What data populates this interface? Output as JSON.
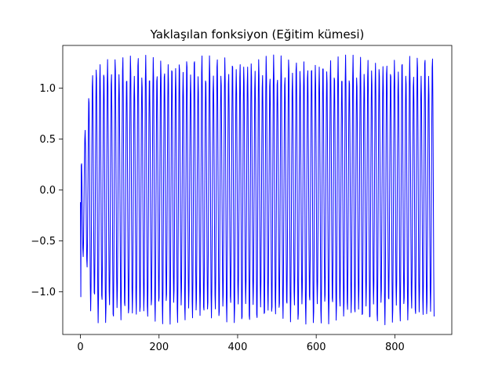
{
  "chart_data": {
    "type": "line",
    "title": "Yaklaşılan fonksiyon (Eğitim kümesi)",
    "xlabel": "",
    "ylabel": "",
    "xlim": [
      -45,
      945
    ],
    "ylim": [
      -1.42,
      1.42
    ],
    "x_ticks": [
      0,
      200,
      400,
      600,
      800
    ],
    "x_tick_labels": [
      "0",
      "200",
      "400",
      "600",
      "800"
    ],
    "y_ticks": [
      -1.0,
      -0.5,
      0.0,
      0.5,
      1.0
    ],
    "y_tick_labels": [
      "−1.0",
      "−0.5",
      "0.0",
      "0.5",
      "1.0"
    ],
    "grid": false,
    "legend": "none",
    "series": [
      {
        "color": "#0000ff",
        "x_range": [
          0,
          900
        ],
        "num_points": 900,
        "shape": "oscillation with amplitude growing from about 0.15 at x=0 to about 1.33 by x≈40, then roughly steady between -1.33 and 1.33 up to x=900",
        "envelope_x": [
          0,
          10,
          20,
          30,
          40,
          60,
          100,
          900
        ],
        "envelope_upper": [
          0.2,
          0.6,
          0.95,
          1.25,
          1.32,
          1.33,
          1.33,
          1.33
        ],
        "envelope_lower": [
          -1.05,
          -0.5,
          -1.1,
          -1.25,
          -1.3,
          -1.33,
          -1.33,
          -1.33
        ]
      }
    ]
  }
}
